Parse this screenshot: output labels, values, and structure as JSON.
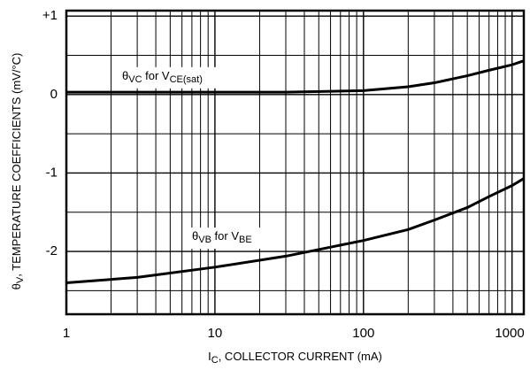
{
  "chart_data": {
    "type": "line",
    "xscale": "log",
    "xlim": [
      1,
      1200
    ],
    "xticks": [
      1,
      10,
      100,
      1000
    ],
    "xminor": [
      2,
      3,
      4,
      5,
      6,
      7,
      8,
      9,
      20,
      30,
      40,
      50,
      60,
      70,
      80,
      90,
      200,
      300,
      400,
      500,
      600,
      700,
      800,
      900
    ],
    "ylim": [
      -2.8,
      1.07
    ],
    "yticks": [
      {
        "value": 1,
        "label": "+1"
      },
      0,
      -1,
      -2
    ],
    "yminor": [
      0.5,
      -0.5,
      -1.5,
      -2.5
    ],
    "grid": true,
    "xlabel": [
      "I",
      "C",
      ", COLLECTOR CURRENT (mA)"
    ],
    "ylabel": [
      "θ",
      "V",
      ", TEMPERATURE COEFFICIENTS (mV/°C)"
    ],
    "x": [
      1,
      3,
      10,
      30,
      100,
      200,
      300,
      500,
      700,
      1000,
      1200
    ],
    "series": [
      {
        "name": [
          "θ",
          "VC",
          " for V",
          "CE(sat)"
        ],
        "color": "#000000",
        "values": [
          0.03,
          0.03,
          0.03,
          0.03,
          0.05,
          0.1,
          0.15,
          0.24,
          0.31,
          0.38,
          0.43
        ]
      },
      {
        "name": [
          "θ",
          "VB",
          " for V",
          "BE"
        ],
        "color": "#000000",
        "values": [
          -2.4,
          -2.33,
          -2.2,
          -2.06,
          -1.86,
          -1.72,
          -1.6,
          -1.44,
          -1.3,
          -1.16,
          -1.07
        ]
      }
    ]
  }
}
